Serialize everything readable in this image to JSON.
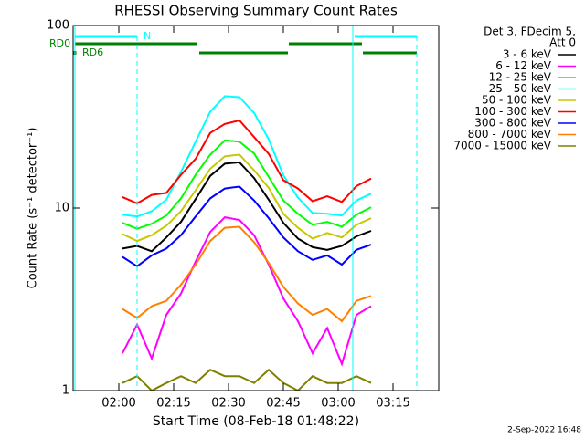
{
  "chart_data": {
    "type": "line",
    "title": "RHESSI Observing Summary Count Rates",
    "x_label": "Start Time (08-Feb-18 01:48:22)",
    "y_label": "Count Rate (s⁻¹ detector⁻¹)",
    "legend_title": [
      "Det 3, FDecim 5,",
      "Att 0"
    ],
    "footer": "2-Sep-2022 16:48",
    "annotations": [
      "RD0",
      "RD6",
      "N"
    ],
    "log_y": true,
    "legend": "right",
    "xlim": [
      107.5,
      207.5
    ],
    "xticks": [
      {
        "value": 120,
        "label": "02:00"
      },
      {
        "value": 135,
        "label": "02:15"
      },
      {
        "value": 150,
        "label": "02:30"
      },
      {
        "value": 165,
        "label": "02:45"
      },
      {
        "value": 180,
        "label": "03:00"
      },
      {
        "value": 195,
        "label": "03:15"
      }
    ],
    "ylim": [
      1,
      100
    ],
    "yticks": [
      1,
      10,
      100
    ],
    "x": [
      121,
      125,
      129,
      133,
      137,
      141,
      145,
      149,
      153,
      157,
      161,
      165,
      169,
      173,
      177,
      181,
      185,
      189
    ],
    "series": [
      {
        "name": "3 - 6 keV",
        "color": "#000000",
        "values": [
          6,
          6.2,
          5.8,
          6.9,
          8.4,
          11.2,
          15,
          17.5,
          17.8,
          14.6,
          11.1,
          8.3,
          6.8,
          6.1,
          5.9,
          6.2,
          7,
          7.5
        ]
      },
      {
        "name": "6 - 12 keV",
        "color": "#ff00ff",
        "values": [
          1.6,
          2.3,
          1.5,
          2.6,
          3.4,
          5.1,
          7.4,
          8.9,
          8.6,
          7.1,
          4.9,
          3.2,
          2.4,
          1.6,
          2.2,
          1.4,
          2.6,
          2.9
        ]
      },
      {
        "name": "12 - 25 keV",
        "color": "#00ff00",
        "values": [
          8.3,
          7.7,
          8.2,
          9.1,
          11.3,
          15.2,
          19.6,
          23.5,
          23.1,
          19.9,
          14.8,
          11.0,
          9.3,
          8.1,
          8.4,
          7.9,
          9.2,
          10.1
        ]
      },
      {
        "name": "25 - 50 keV",
        "color": "#00ffff",
        "values": [
          9.2,
          9.0,
          9.6,
          11.1,
          15.8,
          23.1,
          33.7,
          41.0,
          40.5,
          33.2,
          23.8,
          15.1,
          11.4,
          9.4,
          9.3,
          9.1,
          11,
          12
        ]
      },
      {
        "name": "50 - 100 keV",
        "color": "#c8c800",
        "values": [
          7.2,
          6.6,
          7.1,
          8.0,
          9.6,
          12.5,
          16.4,
          19.2,
          19.6,
          16.1,
          12.9,
          9.3,
          7.8,
          6.8,
          7.3,
          6.9,
          8.1,
          8.8
        ]
      },
      {
        "name": "100 - 300 keV",
        "color": "#ff0000",
        "values": [
          11.5,
          10.6,
          11.8,
          12.1,
          15.2,
          18.6,
          25.8,
          28.9,
          30.2,
          24.5,
          19.8,
          14.2,
          12.8,
          10.9,
          11.6,
          10.8,
          13.2,
          14.5
        ]
      },
      {
        "name": "300 - 800 keV",
        "color": "#0000ff",
        "values": [
          5.4,
          4.8,
          5.5,
          6.0,
          7.1,
          9.0,
          11.3,
          12.8,
          13.1,
          11.0,
          8.8,
          6.9,
          5.8,
          5.2,
          5.5,
          4.9,
          5.9,
          6.3
        ]
      },
      {
        "name": "800 - 7000 keV",
        "color": "#ff8000",
        "values": [
          2.8,
          2.5,
          2.9,
          3.1,
          3.8,
          4.9,
          6.6,
          7.8,
          7.9,
          6.5,
          5.0,
          3.7,
          3.0,
          2.6,
          2.8,
          2.4,
          3.1,
          3.3
        ]
      },
      {
        "name": "7000 - 15000 keV",
        "color": "#808000",
        "values": [
          1.1,
          1.2,
          1.0,
          1.1,
          1.2,
          1.1,
          1.3,
          1.2,
          1.2,
          1.1,
          1.3,
          1.1,
          1.0,
          1.2,
          1.1,
          1.1,
          1.2,
          1.1
        ]
      }
    ]
  }
}
